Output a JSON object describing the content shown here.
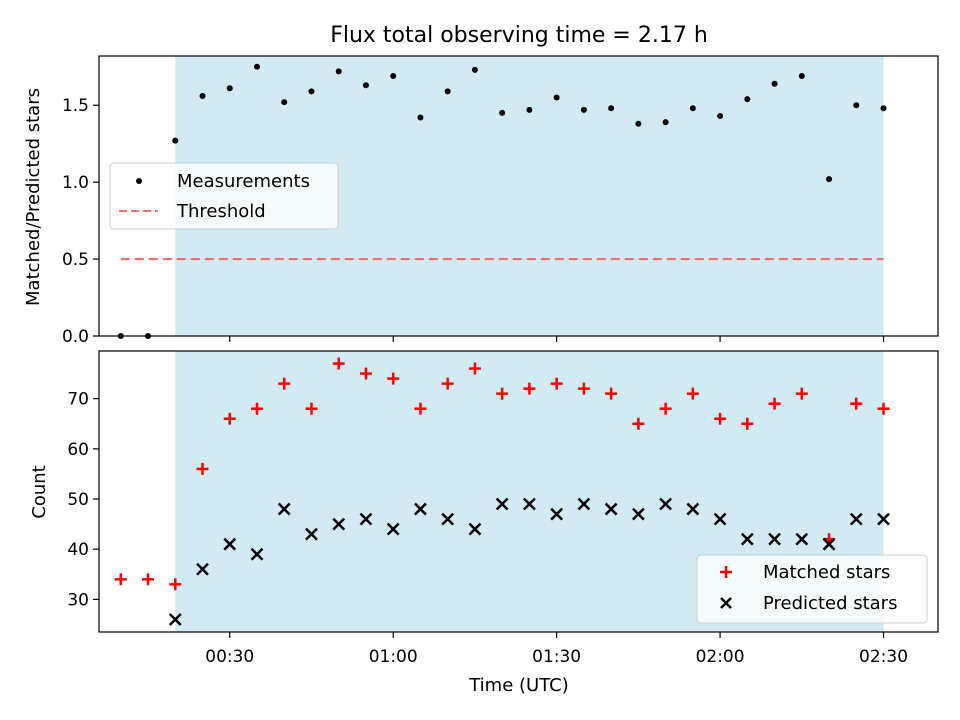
{
  "title": "Flux total observing time = 2.17 h",
  "colors": {
    "shade": "#add8e6",
    "measurements": "#000000",
    "threshold": "#ff6b6b",
    "matched": "#ff0000",
    "predicted": "#000000"
  },
  "chart_data": [
    {
      "type": "scatter",
      "panel": "top",
      "ylabel": "Matched/Predicted stars",
      "xlim": [
        6,
        160
      ],
      "ylim": [
        0,
        1.82
      ],
      "yticks": [
        0.0,
        0.5,
        1.0,
        1.5
      ],
      "ytick_labels": [
        "0.0",
        "0.5",
        "1.0",
        "1.5"
      ],
      "shaded_region": [
        20,
        150
      ],
      "legend": {
        "placement": "center-left",
        "entries": [
          "Measurements",
          "Threshold"
        ]
      },
      "series": [
        {
          "name": "Measurements",
          "marker": "dot",
          "x": [
            10,
            15,
            20,
            25,
            30,
            35,
            40,
            45,
            50,
            55,
            60,
            65,
            70,
            75,
            80,
            85,
            90,
            95,
            100,
            105,
            110,
            115,
            120,
            125,
            130,
            135,
            140,
            145,
            150
          ],
          "y": [
            0.0,
            0.0,
            1.27,
            1.56,
            1.61,
            1.75,
            1.52,
            1.59,
            1.72,
            1.63,
            1.69,
            1.42,
            1.59,
            1.73,
            1.45,
            1.47,
            1.55,
            1.47,
            1.48,
            1.38,
            1.39,
            1.48,
            1.43,
            1.54,
            1.64,
            1.69,
            1.02,
            1.5,
            1.48
          ]
        },
        {
          "name": "Threshold",
          "style": "dashed",
          "x": [
            10,
            150
          ],
          "y": [
            0.5,
            0.5
          ]
        }
      ]
    },
    {
      "type": "scatter",
      "panel": "bottom",
      "xlabel": "Time (UTC)",
      "ylabel": "Count",
      "xlim": [
        6,
        160
      ],
      "ylim": [
        23.5,
        79.5
      ],
      "yticks": [
        30,
        40,
        50,
        60,
        70
      ],
      "ytick_labels": [
        "30",
        "40",
        "50",
        "60",
        "70"
      ],
      "xticks": [
        30,
        60,
        90,
        120,
        150
      ],
      "xtick_labels": [
        "00:30",
        "01:00",
        "01:30",
        "02:00",
        "02:30"
      ],
      "shaded_region": [
        20,
        150
      ],
      "legend": {
        "placement": "lower-right",
        "entries": [
          "Matched stars",
          "Predicted stars"
        ]
      },
      "series": [
        {
          "name": "Matched stars",
          "marker": "plus",
          "x": [
            10,
            15,
            20,
            25,
            30,
            35,
            40,
            45,
            50,
            55,
            60,
            65,
            70,
            75,
            80,
            85,
            90,
            95,
            100,
            105,
            110,
            115,
            120,
            125,
            130,
            135,
            140,
            145,
            150
          ],
          "y": [
            34,
            34,
            33,
            56,
            66,
            68,
            73,
            68,
            77,
            75,
            74,
            68,
            73,
            76,
            71,
            72,
            73,
            72,
            71,
            65,
            68,
            71,
            66,
            65,
            69,
            71,
            42,
            69,
            68
          ]
        },
        {
          "name": "Predicted stars",
          "marker": "x",
          "x": [
            20,
            25,
            30,
            35,
            40,
            45,
            50,
            55,
            60,
            65,
            70,
            75,
            80,
            85,
            90,
            95,
            100,
            105,
            110,
            115,
            120,
            125,
            130,
            135,
            140,
            145,
            150
          ],
          "y": [
            26,
            36,
            41,
            39,
            48,
            43,
            45,
            46,
            44,
            48,
            46,
            44,
            49,
            49,
            47,
            49,
            48,
            47,
            49,
            48,
            46,
            42,
            42,
            42,
            41,
            46,
            46
          ]
        }
      ]
    }
  ]
}
